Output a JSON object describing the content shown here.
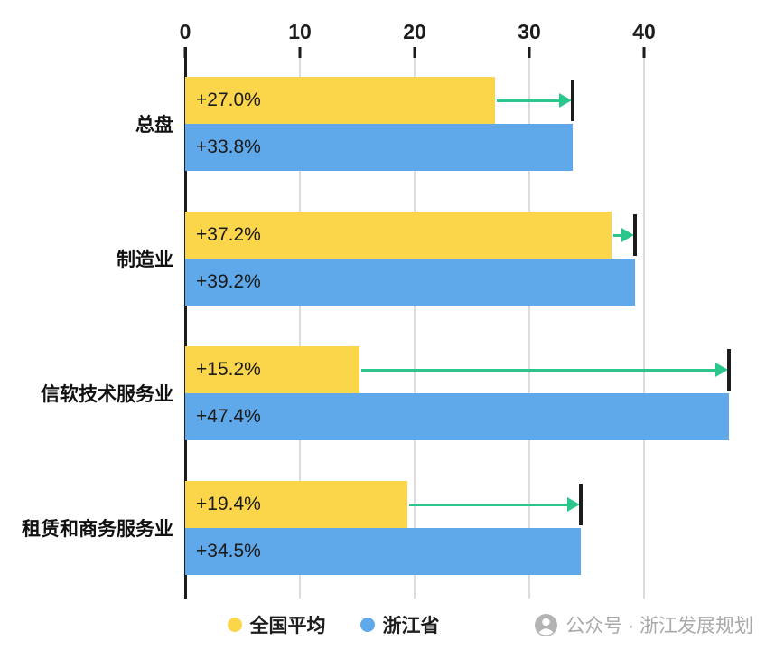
{
  "chart_data": {
    "type": "bar",
    "orientation": "horizontal",
    "title": "",
    "x_axis": {
      "ticks": [
        0,
        10,
        20,
        30,
        40
      ],
      "min": 0,
      "max": 50,
      "position": "top"
    },
    "categories": [
      "总盘",
      "制造业",
      "信软技术服务业",
      "租赁和商务服务业"
    ],
    "series": [
      {
        "name": "全国平均",
        "color": "#fbd54a",
        "values": [
          27.0,
          37.2,
          15.2,
          19.4
        ],
        "labels": [
          "+27.0%",
          "+37.2%",
          "+15.2%",
          "+19.4%"
        ]
      },
      {
        "name": "浙江省",
        "color": "#5fa8ea",
        "values": [
          33.8,
          39.2,
          47.4,
          34.5
        ],
        "labels": [
          "+33.8%",
          "+39.2%",
          "+47.4%",
          "+34.5%"
        ]
      }
    ],
    "annotations": "green arrow from national-average bar end to zhejiang bar end with black cap marker",
    "arrow_color": "#2bc68c",
    "grid": true,
    "legend_position": "bottom"
  },
  "legend": {
    "items": [
      {
        "label": "全国平均",
        "color": "#fbd54a"
      },
      {
        "label": "浙江省",
        "color": "#5fa8ea"
      }
    ]
  },
  "watermark": {
    "icon": "wechat-official-account-icon",
    "text": "公众号 · 浙江发展规划",
    "color": "#a9a9a9"
  }
}
